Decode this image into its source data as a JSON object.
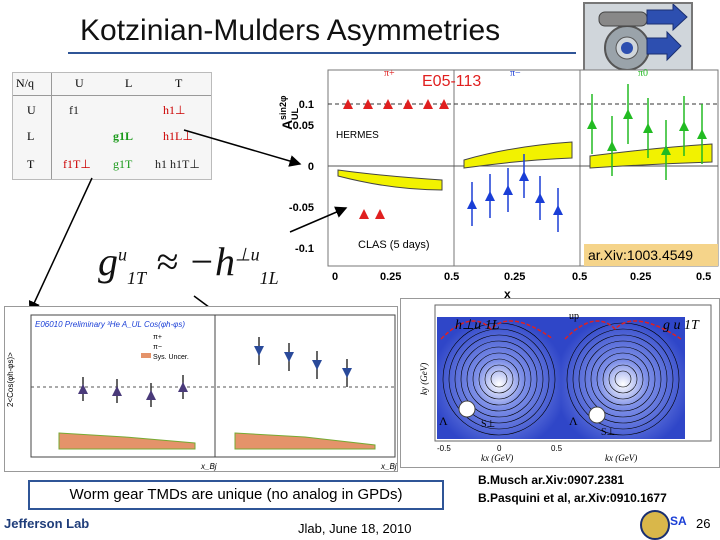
{
  "slide": {
    "title": "Kotzinian-Mulders Asymmetries",
    "worm_gear_text": "Worm gear TMDs are unique (no analog in GPDs)",
    "ref1": "B.Musch ar.Xiv:0907.2381",
    "ref2": "B.Pasquini et al, ar.Xiv:0910.1677",
    "footer_date": "Jlab, June 18, 2010",
    "page_number": "26",
    "lab_name": "Jefferson Lab"
  },
  "table": {
    "head": [
      "N/q",
      "U",
      "L",
      "T"
    ],
    "rows": [
      {
        "label": "U",
        "cells": [
          "f1",
          "",
          "h1⊥"
        ]
      },
      {
        "label": "L",
        "cells": [
          "",
          "g1L",
          "h1L⊥"
        ]
      },
      {
        "label": "T",
        "cells": [
          "f1T⊥",
          "g1T",
          "h1 h1T⊥"
        ]
      }
    ]
  },
  "formula": {
    "lhs": "g",
    "lhs_sup": "u",
    "lhs_sub": "1T",
    "op": "≈ −h",
    "rhs_sup": "⊥u",
    "rhs_sub": "1L"
  },
  "top_chart": {
    "experiment": "E05-113",
    "arxiv": "ar.Xiv:1003.4549",
    "hermes_label": "HERMES",
    "clas_label": "CLAS (5 days)",
    "ylabel": "A",
    "ylabel_sup": "sin2φ",
    "ylabel_sub": "UL",
    "xlabel": "x",
    "yticks": [
      "0.1",
      "0.05",
      "0",
      "-0.05",
      "-0.1"
    ],
    "xticks": [
      "0",
      "0.25",
      "0.5"
    ],
    "panel_labels": [
      "π+",
      "π−",
      "π0"
    ]
  },
  "bottom_chart": {
    "header": "E06010 Preliminary ³He A_UL Cos(φh-φs)",
    "legend": [
      "π+",
      "π−",
      "Sys. Uncer."
    ],
    "ylabel": "2<Cos(φh-φs)>",
    "xlabel": "x_Bj",
    "yticks": [
      "0.08",
      "0.06",
      "0.04",
      "0.02",
      "0",
      "-0.02",
      "-0.04",
      "-0.06",
      "-0.08"
    ],
    "xticks": [
      "0.1",
      "0.15",
      "0.2",
      "0.25",
      "0.3",
      "0.35",
      "0.4",
      "0.45"
    ]
  },
  "lattice": {
    "label_left": "h⊥u 1L",
    "label_right": "g u 1T",
    "up": "up",
    "axis_x": "kx (GeV)",
    "axis_y": "ky (GeV)",
    "tick_values": [
      "-0.5",
      "0",
      "0.5"
    ],
    "s_perp": "S⊥",
    "lambda": "Λ"
  },
  "colors": {
    "accent": "#2f5597",
    "red": "#e02020",
    "blue": "#1a3ed6",
    "green": "#22bb22",
    "yellow": "#f2f200"
  }
}
